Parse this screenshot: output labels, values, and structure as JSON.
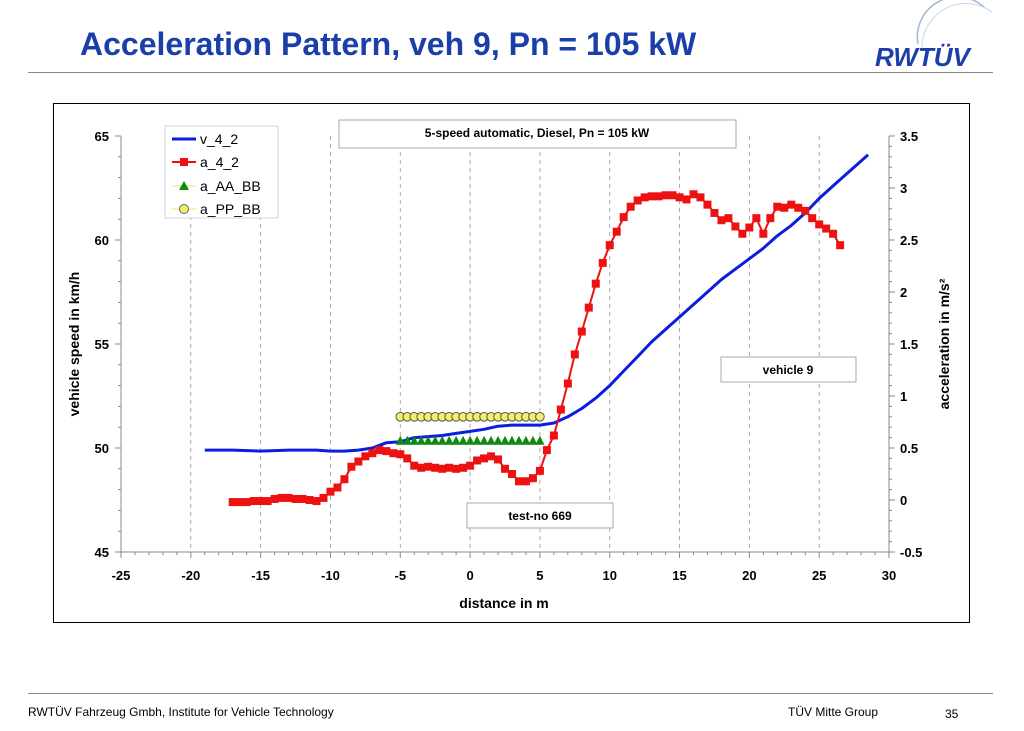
{
  "page": {
    "title": "Acceleration Pattern, veh 9, Pn = 105 kW",
    "logo_text": "RWTÜV",
    "footer_left": "RWTÜV Fahrzeug Gmbh, Institute for Vehicle Technology",
    "footer_center": "TÜV Mitte Group",
    "page_number": "35"
  },
  "colors": {
    "title": "#1a3fa8",
    "v_4_2": "#0a1ee0",
    "a_4_2": "#ee1111",
    "a_AA_BB": "#118811",
    "a_PP_BB": "#f5f06a"
  },
  "chart_data": {
    "type": "line",
    "xlabel": "distance in m",
    "ylabel": "vehicle speed in km/h",
    "y2label": "acceleration in m/s²",
    "xlim": [
      -25,
      30
    ],
    "ylim": [
      45,
      65
    ],
    "y2lim": [
      -0.5,
      3.5
    ],
    "x_ticks": [
      "-25",
      "-20",
      "-15",
      "-10",
      "-5",
      "0",
      "5",
      "10",
      "15",
      "20",
      "25",
      "30"
    ],
    "y_ticks": [
      "45",
      "50",
      "55",
      "60",
      "65"
    ],
    "y2_ticks": [
      "-0.5",
      "0",
      "0.5",
      "1",
      "1.5",
      "2",
      "2.5",
      "3",
      "3.5"
    ],
    "legend_placement": "top-left",
    "grid": "vertical dashed",
    "annotations": [
      "5-speed automatic, Diesel, Pn = 105 kW",
      "vehicle 9",
      "test-no 669"
    ],
    "series": [
      {
        "name": "v_4_2",
        "axis": "left",
        "style": "line",
        "color": "#0a1ee0",
        "points": [
          [
            -19,
            49.9
          ],
          [
            -17,
            49.9
          ],
          [
            -15,
            49.85
          ],
          [
            -13,
            49.9
          ],
          [
            -11,
            49.9
          ],
          [
            -10,
            49.85
          ],
          [
            -9,
            49.85
          ],
          [
            -8,
            49.9
          ],
          [
            -7,
            50.0
          ],
          [
            -6,
            50.25
          ],
          [
            -5,
            50.3
          ],
          [
            -4,
            50.5
          ],
          [
            -3,
            50.55
          ],
          [
            -2,
            50.6
          ],
          [
            -1,
            50.7
          ],
          [
            0,
            50.8
          ],
          [
            1,
            50.9
          ],
          [
            2,
            51.05
          ],
          [
            3,
            51.1
          ],
          [
            4,
            51.1
          ],
          [
            5,
            51.1
          ],
          [
            6,
            51.2
          ],
          [
            7,
            51.5
          ],
          [
            8,
            51.9
          ],
          [
            9,
            52.4
          ],
          [
            10,
            53.0
          ],
          [
            11,
            53.7
          ],
          [
            12,
            54.4
          ],
          [
            13,
            55.1
          ],
          [
            14,
            55.7
          ],
          [
            15,
            56.3
          ],
          [
            16,
            56.9
          ],
          [
            17,
            57.5
          ],
          [
            18,
            58.1
          ],
          [
            19,
            58.6
          ],
          [
            20,
            59.1
          ],
          [
            21,
            59.6
          ],
          [
            22,
            60.2
          ],
          [
            23,
            60.7
          ],
          [
            24,
            61.3
          ],
          [
            25,
            62.0
          ],
          [
            26,
            62.6
          ],
          [
            27,
            63.2
          ],
          [
            28,
            63.8
          ],
          [
            28.5,
            64.1
          ]
        ]
      },
      {
        "name": "a_4_2",
        "axis": "right",
        "style": "line-square",
        "color": "#ee1111",
        "points": [
          [
            -17,
            -0.02
          ],
          [
            -16.5,
            -0.02
          ],
          [
            -16,
            -0.02
          ],
          [
            -15.5,
            -0.01
          ],
          [
            -15,
            -0.01
          ],
          [
            -14.5,
            -0.01
          ],
          [
            -14,
            0.01
          ],
          [
            -13.5,
            0.02
          ],
          [
            -13,
            0.02
          ],
          [
            -12.5,
            0.01
          ],
          [
            -12,
            0.01
          ],
          [
            -11.5,
            0.0
          ],
          [
            -11,
            -0.01
          ],
          [
            -10.5,
            0.02
          ],
          [
            -10,
            0.08
          ],
          [
            -9.5,
            0.12
          ],
          [
            -9,
            0.2
          ],
          [
            -8.5,
            0.32
          ],
          [
            -8,
            0.37
          ],
          [
            -7.5,
            0.42
          ],
          [
            -7,
            0.45
          ],
          [
            -6.5,
            0.48
          ],
          [
            -6,
            0.47
          ],
          [
            -5.5,
            0.45
          ],
          [
            -5,
            0.44
          ],
          [
            -4.5,
            0.4
          ],
          [
            -4,
            0.33
          ],
          [
            -3.5,
            0.31
          ],
          [
            -3,
            0.32
          ],
          [
            -2.5,
            0.31
          ],
          [
            -2,
            0.3
          ],
          [
            -1.5,
            0.31
          ],
          [
            -1,
            0.3
          ],
          [
            -0.5,
            0.31
          ],
          [
            0,
            0.33
          ],
          [
            0.5,
            0.38
          ],
          [
            1,
            0.4
          ],
          [
            1.5,
            0.42
          ],
          [
            2,
            0.39
          ],
          [
            2.5,
            0.3
          ],
          [
            3,
            0.25
          ],
          [
            3.5,
            0.18
          ],
          [
            4,
            0.18
          ],
          [
            4.5,
            0.21
          ],
          [
            5,
            0.28
          ],
          [
            5.5,
            0.48
          ],
          [
            6,
            0.62
          ],
          [
            6.5,
            0.87
          ],
          [
            7,
            1.12
          ],
          [
            7.5,
            1.4
          ],
          [
            8,
            1.62
          ],
          [
            8.5,
            1.85
          ],
          [
            9,
            2.08
          ],
          [
            9.5,
            2.28
          ],
          [
            10,
            2.45
          ],
          [
            10.5,
            2.58
          ],
          [
            11,
            2.72
          ],
          [
            11.5,
            2.82
          ],
          [
            12,
            2.88
          ],
          [
            12.5,
            2.91
          ],
          [
            13,
            2.92
          ],
          [
            13.5,
            2.92
          ],
          [
            14,
            2.93
          ],
          [
            14.5,
            2.93
          ],
          [
            15,
            2.91
          ],
          [
            15.5,
            2.89
          ],
          [
            16,
            2.94
          ],
          [
            16.5,
            2.91
          ],
          [
            17,
            2.84
          ],
          [
            17.5,
            2.76
          ],
          [
            18,
            2.69
          ],
          [
            18.5,
            2.71
          ],
          [
            19,
            2.63
          ],
          [
            19.5,
            2.56
          ],
          [
            20,
            2.62
          ],
          [
            20.5,
            2.71
          ],
          [
            21,
            2.56
          ],
          [
            21.5,
            2.71
          ],
          [
            22,
            2.82
          ],
          [
            22.5,
            2.81
          ],
          [
            23,
            2.84
          ],
          [
            23.5,
            2.81
          ],
          [
            24,
            2.78
          ],
          [
            24.5,
            2.71
          ],
          [
            25,
            2.65
          ],
          [
            25.5,
            2.61
          ],
          [
            26,
            2.56
          ],
          [
            26.5,
            2.45
          ]
        ]
      },
      {
        "name": "a_AA_BB",
        "axis": "right",
        "style": "triangle",
        "color": "#118811",
        "x_from": -5,
        "x_to": 5,
        "x_step": 0.5,
        "value": 0.57
      },
      {
        "name": "a_PP_BB",
        "axis": "right",
        "style": "circle",
        "color": "#f5f06a",
        "x_from": -5,
        "x_to": 5,
        "x_step": 0.5,
        "value": 0.8
      }
    ]
  }
}
